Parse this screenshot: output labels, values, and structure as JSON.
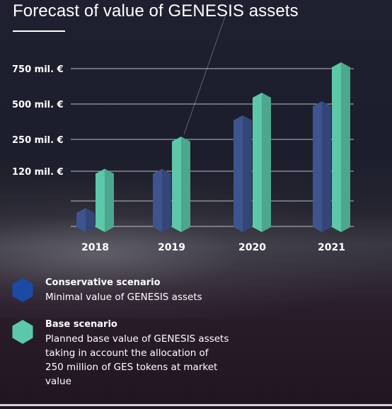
{
  "chart_data": {
    "type": "bar",
    "title": "Forecast of value of GENESIS assets",
    "categories": [
      "2018",
      "2019",
      "2020",
      "2021"
    ],
    "ytick_labels": [
      "120 mil. €",
      "250 mil. €",
      "500 mil. €",
      "750 mil. €"
    ],
    "grid": true,
    "legend_position": "bottom-left",
    "series": [
      {
        "name": "Conservative scenario",
        "values": [
          40,
          130,
          420,
          520
        ]
      },
      {
        "name": "Base scenario",
        "values": [
          130,
          270,
          580,
          800
        ]
      }
    ]
  },
  "legend": [
    {
      "heading": "Conservative scenario",
      "description": "Minimal value of GENESIS assets",
      "icon": "hexagon-blue-icon",
      "color": "#1a4aa6"
    },
    {
      "heading": "Base scenario",
      "description": "Planned base value of GENESIS assets taking in account the allocation of 250 million of GES tokens at market value",
      "icon": "hexagon-teal-icon",
      "color": "#5bc9a9"
    }
  ],
  "colors": {
    "conservative_bar": "#3d548e",
    "base_bar": "#5cc8a8",
    "grid": "#d8d8dc"
  }
}
